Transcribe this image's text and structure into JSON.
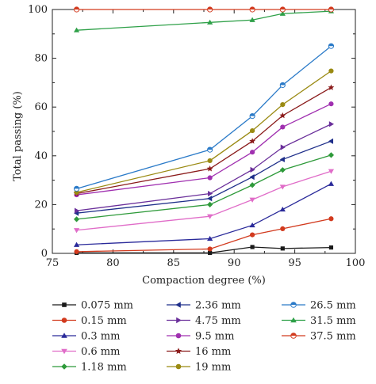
{
  "chart_data": {
    "type": "line",
    "xlabel": "Compaction degree (%)",
    "ylabel": "Total passing (%)",
    "xlim": [
      75,
      100
    ],
    "ylim": [
      0,
      100
    ],
    "xticks": [
      75,
      80,
      85,
      90,
      95,
      100
    ],
    "yticks": [
      0,
      20,
      40,
      60,
      80,
      100
    ],
    "x": [
      77,
      88,
      91.5,
      94,
      98
    ],
    "legend_position": "bottom",
    "series": [
      {
        "name": "0.075 mm",
        "color": "#1a1a1a",
        "marker": "square",
        "values": [
          0.2,
          0.2,
          2.6,
          2.0,
          2.4
        ]
      },
      {
        "name": "0.15 mm",
        "color": "#d23a1e",
        "marker": "circle",
        "values": [
          0.7,
          1.8,
          7.6,
          10.1,
          14.2
        ]
      },
      {
        "name": "0.3 mm",
        "color": "#2a2a9a",
        "marker": "triangle-up",
        "values": [
          3.5,
          6.0,
          11.5,
          18.0,
          28.5
        ]
      },
      {
        "name": "0.6 mm",
        "color": "#e06cc8",
        "marker": "triangle-down",
        "values": [
          9.5,
          15.2,
          22.0,
          27.3,
          33.7
        ]
      },
      {
        "name": "1.18 mm",
        "color": "#2e9a3a",
        "marker": "diamond",
        "values": [
          14.0,
          20.0,
          28.0,
          34.2,
          40.3
        ]
      },
      {
        "name": "2.36 mm",
        "color": "#1f2f8a",
        "marker": "triangle-left",
        "values": [
          16.5,
          22.5,
          31.3,
          38.5,
          46.0
        ]
      },
      {
        "name": "4.75 mm",
        "color": "#6a2f9a",
        "marker": "triangle-right",
        "values": [
          17.5,
          24.5,
          34.3,
          43.5,
          53.0
        ]
      },
      {
        "name": "9.5 mm",
        "color": "#a030b0",
        "marker": "circle",
        "values": [
          24.0,
          31.0,
          41.5,
          51.8,
          61.3
        ]
      },
      {
        "name": "16 mm",
        "color": "#8a1a1a",
        "marker": "star",
        "values": [
          24.5,
          34.7,
          46.0,
          56.5,
          68.0
        ]
      },
      {
        "name": "19 mm",
        "color": "#9a8a12",
        "marker": "circle",
        "values": [
          25.0,
          38.0,
          50.3,
          61.0,
          74.8
        ]
      },
      {
        "name": "26.5 mm",
        "color": "#2a7ac8",
        "marker": "half-circle",
        "values": [
          26.5,
          42.5,
          56.3,
          69.0,
          85.0
        ]
      },
      {
        "name": "31.5 mm",
        "color": "#2ea048",
        "marker": "triangle-up",
        "values": [
          91.5,
          94.7,
          95.7,
          98.3,
          99.3
        ]
      },
      {
        "name": "37.5 mm",
        "color": "#d23a1e",
        "marker": "half-circle",
        "values": [
          100,
          100,
          100,
          100,
          100
        ]
      }
    ]
  }
}
